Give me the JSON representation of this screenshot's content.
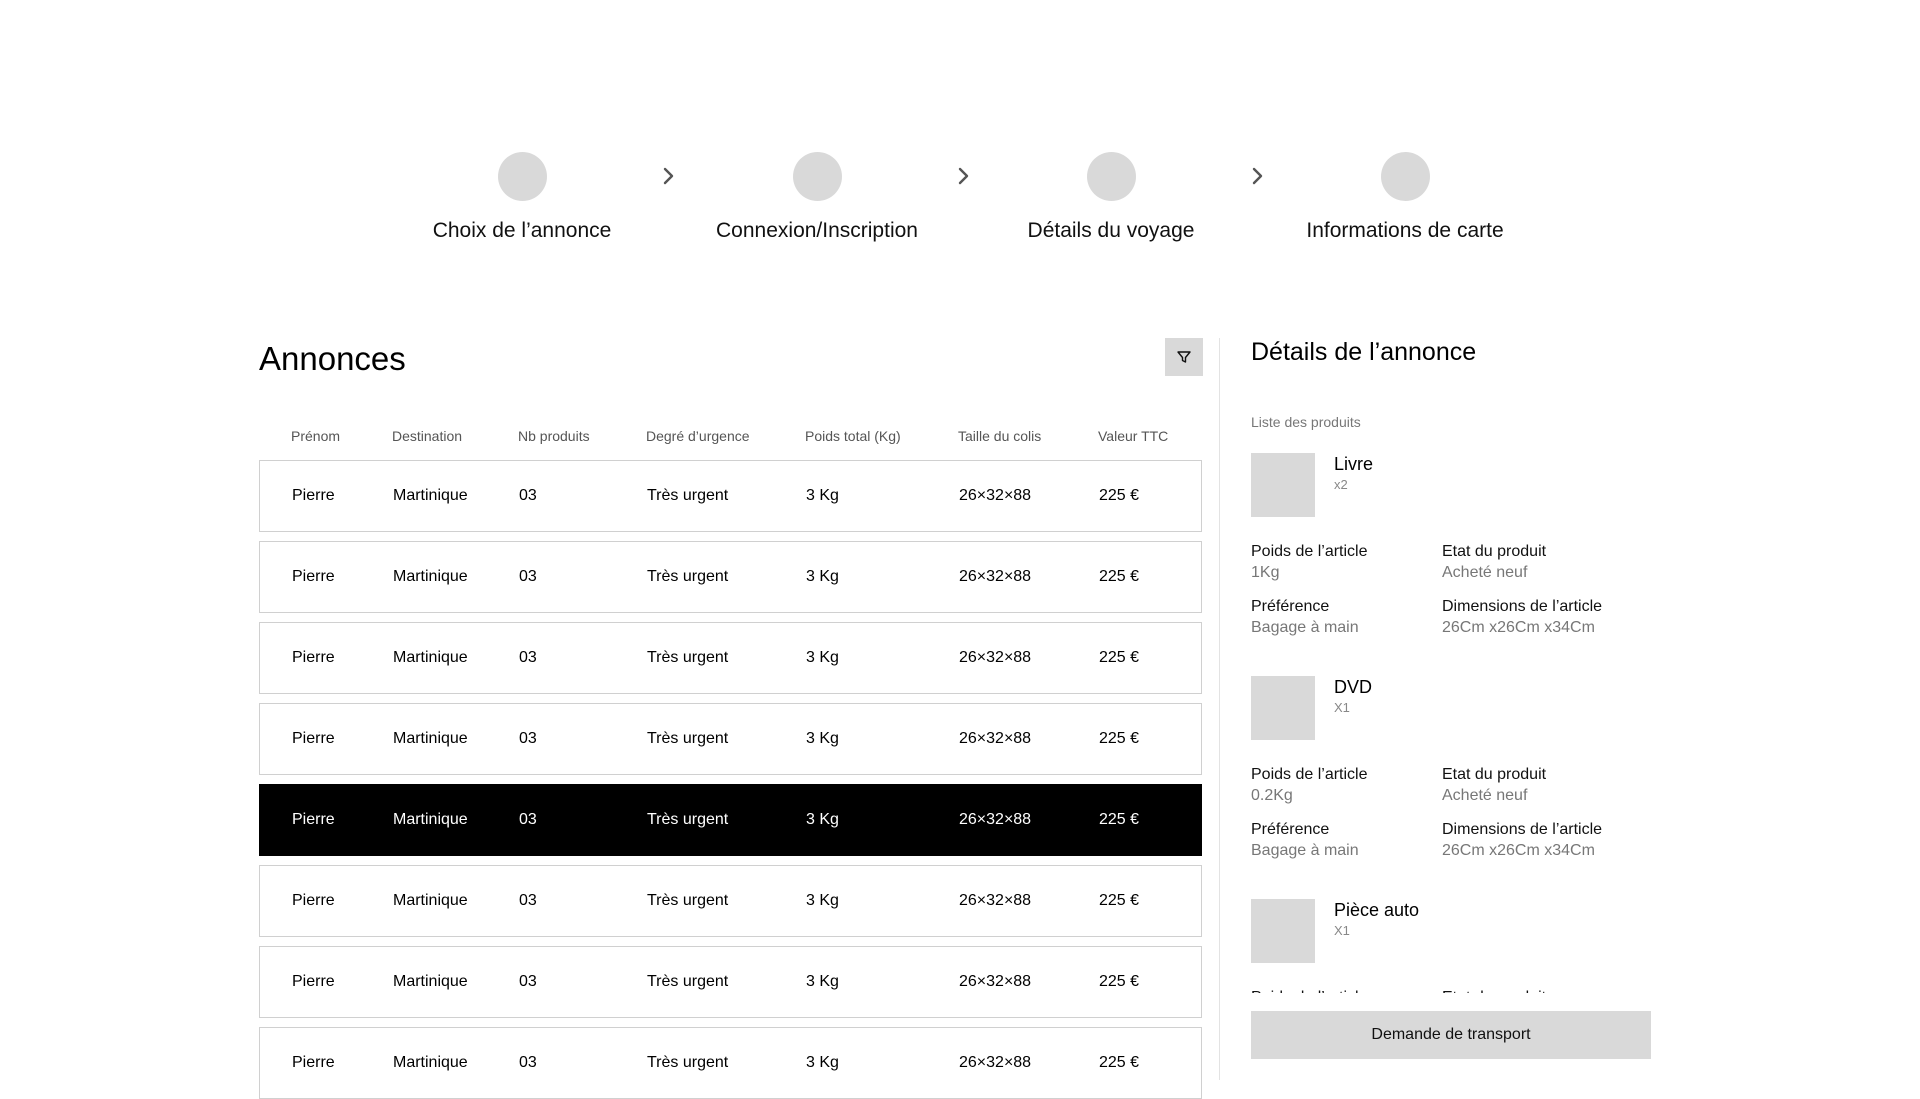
{
  "stepper": {
    "steps": [
      {
        "label": "Choix de l’annonce"
      },
      {
        "label": "Connexion/Inscription"
      },
      {
        "label": "Détails du voyage"
      },
      {
        "label": "Informations de carte"
      }
    ],
    "icons": {
      "step": "step-circle-icon",
      "separator": "chevron-right-icon"
    }
  },
  "list": {
    "title": "Annonces",
    "filter_icon": "filter-icon",
    "columns": [
      "Prénom",
      "Destination",
      "Nb produits",
      "Degré d’urgence",
      "Poids total (Kg)",
      "Taille du colis",
      "Valeur TTC"
    ],
    "rows": [
      {
        "cells": [
          "Pierre",
          "Martinique",
          "03",
          "Très urgent",
          "3 Kg",
          "26×32×88",
          "225 €"
        ],
        "selected": false
      },
      {
        "cells": [
          "Pierre",
          "Martinique",
          "03",
          "Très urgent",
          "3 Kg",
          "26×32×88",
          "225 €"
        ],
        "selected": false
      },
      {
        "cells": [
          "Pierre",
          "Martinique",
          "03",
          "Très urgent",
          "3 Kg",
          "26×32×88",
          "225 €"
        ],
        "selected": false
      },
      {
        "cells": [
          "Pierre",
          "Martinique",
          "03",
          "Très urgent",
          "3 Kg",
          "26×32×88",
          "225 €"
        ],
        "selected": false
      },
      {
        "cells": [
          "Pierre",
          "Martinique",
          "03",
          "Très urgent",
          "3 Kg",
          "26×32×88",
          "225 €"
        ],
        "selected": true
      },
      {
        "cells": [
          "Pierre",
          "Martinique",
          "03",
          "Très urgent",
          "3 Kg",
          "26×32×88",
          "225 €"
        ],
        "selected": false
      },
      {
        "cells": [
          "Pierre",
          "Martinique",
          "03",
          "Très urgent",
          "3 Kg",
          "26×32×88",
          "225 €"
        ],
        "selected": false
      },
      {
        "cells": [
          "Pierre",
          "Martinique",
          "03",
          "Très urgent",
          "3 Kg",
          "26×32×88",
          "225 €"
        ],
        "selected": false
      }
    ]
  },
  "detail": {
    "title": "Détails de l’annonce",
    "products_label": "Liste des produits",
    "products": [
      {
        "name": "Livre",
        "qty": "x2",
        "attrs": [
          {
            "key": "Poids de l’article",
            "value": "1Kg"
          },
          {
            "key": "Etat du produit",
            "value": "Acheté neuf"
          },
          {
            "key": "Préférence",
            "value": "Bagage à main"
          },
          {
            "key": "Dimensions de l’article",
            "value": "26Cm x26Cm x34Cm"
          }
        ]
      },
      {
        "name": "DVD",
        "qty": "X1",
        "attrs": [
          {
            "key": "Poids de l’article",
            "value": "0.2Kg"
          },
          {
            "key": "Etat du produit",
            "value": "Acheté neuf"
          },
          {
            "key": "Préférence",
            "value": "Bagage à main"
          },
          {
            "key": "Dimensions de l’article",
            "value": "26Cm x26Cm x34Cm"
          }
        ]
      },
      {
        "name": "Pièce auto",
        "qty": "X1",
        "attrs": [
          {
            "key": "Poids de l’article",
            "value": ""
          },
          {
            "key": "Etat du produit",
            "value": ""
          }
        ]
      }
    ],
    "transport_button": "Demande de transport"
  },
  "colors": {
    "placeholder": "#d9d9d9",
    "selected_row": "#000000",
    "border": "#d0d0d0"
  }
}
